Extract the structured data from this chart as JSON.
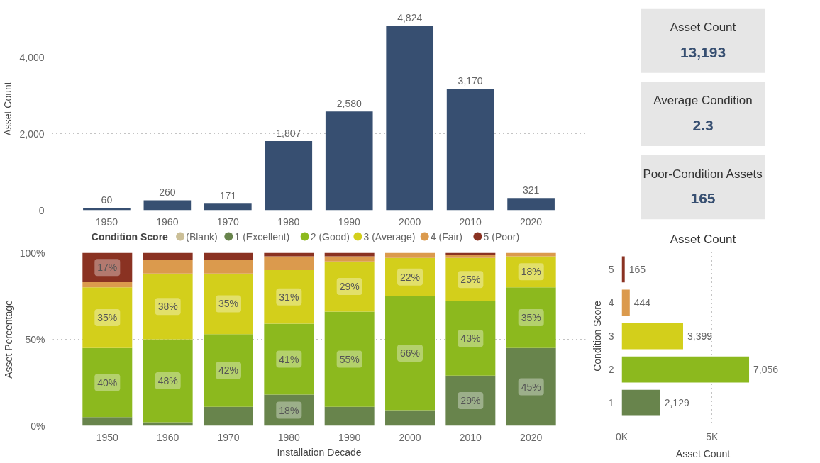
{
  "chart_data": [
    {
      "type": "bar",
      "ylabel": "Asset Count",
      "categories": [
        "1950",
        "1960",
        "1970",
        "1980",
        "1990",
        "2000",
        "2010",
        "2020"
      ],
      "values": [
        60,
        260,
        171,
        1807,
        2580,
        4824,
        3170,
        321
      ],
      "value_labels": [
        "60",
        "260",
        "171",
        "1,807",
        "2,580",
        "4,824",
        "3,170",
        "321"
      ],
      "color": "#374f71",
      "ylim": [
        0,
        5300
      ],
      "yticks": [
        {
          "value": 0,
          "label": "0"
        },
        {
          "value": 2000,
          "label": "2,000"
        },
        {
          "value": 4000,
          "label": "4,000"
        }
      ],
      "grid": "y"
    },
    {
      "type": "other",
      "categories": [
        "Asset Count",
        "Average Condition",
        "Poor-Condition Assets"
      ],
      "value_labels": [
        "13,193",
        "2.3",
        "165"
      ]
    },
    {
      "type": "bar",
      "stacked": true,
      "xlabel": "Installation Decade",
      "ylabel": "Asset Percentage",
      "legend_title": "Condition Score",
      "legend": "top",
      "categories": [
        "1950",
        "1960",
        "1970",
        "1980",
        "1990",
        "2000",
        "2010",
        "2020"
      ],
      "ylim": [
        0,
        100
      ],
      "yticks": [
        {
          "value": 0,
          "label": "0%"
        },
        {
          "value": 50,
          "label": "50%"
        },
        {
          "value": 100,
          "label": "100%"
        }
      ],
      "grid": "y",
      "series": [
        {
          "name": "(Blank)",
          "color": "#cbbf97",
          "values": [
            null,
            null,
            null,
            null,
            null,
            null,
            null,
            null
          ]
        },
        {
          "name": "1 (Excellent)",
          "color": "#68844c",
          "values": [
            5,
            2,
            11,
            18,
            11,
            9,
            29,
            45
          ],
          "value_labels": [
            null,
            null,
            null,
            "18%",
            null,
            null,
            "29%",
            "45%"
          ]
        },
        {
          "name": "2 (Good)",
          "color": "#8cb91e",
          "values": [
            40,
            48,
            42,
            41,
            55,
            66,
            43,
            35
          ],
          "value_labels": [
            "40%",
            "48%",
            "42%",
            "41%",
            "55%",
            "66%",
            "43%",
            "35%"
          ]
        },
        {
          "name": "3 (Average)",
          "color": "#d3cf1b",
          "values": [
            35,
            38,
            35,
            31,
            29,
            22,
            25,
            18
          ],
          "value_labels": [
            "35%",
            "38%",
            "35%",
            "31%",
            "29%",
            "22%",
            "25%",
            "18%"
          ]
        },
        {
          "name": "4 (Fair)",
          "color": "#db9a4d",
          "values": [
            3,
            8,
            8,
            8,
            3,
            3,
            2,
            2
          ]
        },
        {
          "name": "5 (Poor)",
          "color": "#8a3222",
          "values": [
            17,
            4,
            4,
            2,
            2,
            0,
            1,
            0
          ],
          "value_labels": [
            "17%",
            null,
            null,
            null,
            null,
            null,
            null,
            null
          ]
        }
      ]
    },
    {
      "type": "bar",
      "orientation": "horizontal",
      "title": "Asset Count",
      "xlabel": "Asset Count",
      "ylabel": "Condition Score",
      "categories": [
        "5",
        "4",
        "3",
        "2",
        "1"
      ],
      "values": [
        165,
        444,
        3399,
        7056,
        2129
      ],
      "value_labels": [
        "165",
        "444",
        "3,399",
        "7,056",
        "2,129"
      ],
      "colors": [
        "#8a3222",
        "#db9a4d",
        "#d3cf1b",
        "#8cb91e",
        "#68844c"
      ],
      "xlim": [
        0,
        9000
      ],
      "xticks": [
        {
          "value": 0,
          "label": "0K"
        },
        {
          "value": 5000,
          "label": "5K"
        }
      ],
      "grid": "x"
    }
  ]
}
